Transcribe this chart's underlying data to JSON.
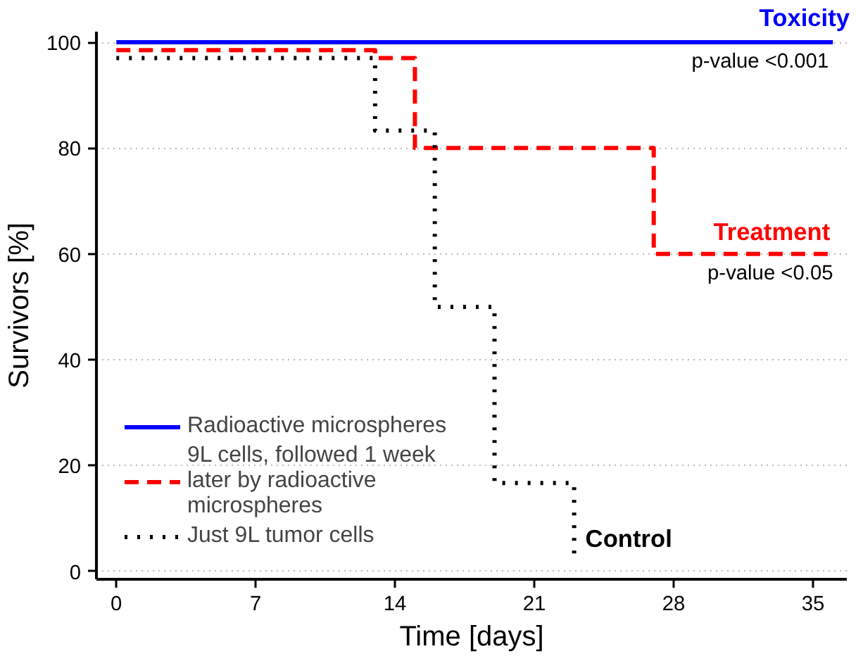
{
  "chart_data": {
    "type": "step",
    "xlabel": "Time [days]",
    "ylabel": "Survivors [%]",
    "xlim": [
      -1,
      36.7
    ],
    "ylim": [
      -1.5,
      102
    ],
    "xticks": [
      0,
      7,
      14,
      21,
      28,
      35
    ],
    "yticks": [
      0,
      20,
      40,
      60,
      80,
      100
    ],
    "grid": "y",
    "legend": "bottom left",
    "marker": "none",
    "series": [
      {
        "name": "Radioactive microspheres",
        "color": "#0000ff",
        "line_style": "solid",
        "x": [
          0,
          36
        ],
        "values": [
          100,
          100
        ]
      },
      {
        "name": "9L cells, followed 1 week later by radioactive microspheres",
        "color": "#ff0000",
        "line_style": "dashed",
        "x": [
          0,
          13,
          15,
          27,
          36
        ],
        "values": [
          98.5,
          97,
          80,
          60,
          60
        ]
      },
      {
        "name": "Just 9L tumor cells",
        "color": "#000000",
        "line_style": "dotted",
        "x": [
          0,
          13,
          16,
          19,
          23
        ],
        "values": [
          97,
          83.3,
          50,
          16.7,
          2.5
        ]
      }
    ],
    "annotations": [
      "Toxicity",
      {
        "text": "p-value <0.001",
        "x": 28.9,
        "y": 100
      },
      {
        "text": "Treatment",
        "x": 30,
        "y": 60
      },
      {
        "text": "p-value <0.05",
        "x": 29.7,
        "y": 60
      },
      {
        "text": "Control",
        "x": 23,
        "y": 2.5
      }
    ]
  }
}
